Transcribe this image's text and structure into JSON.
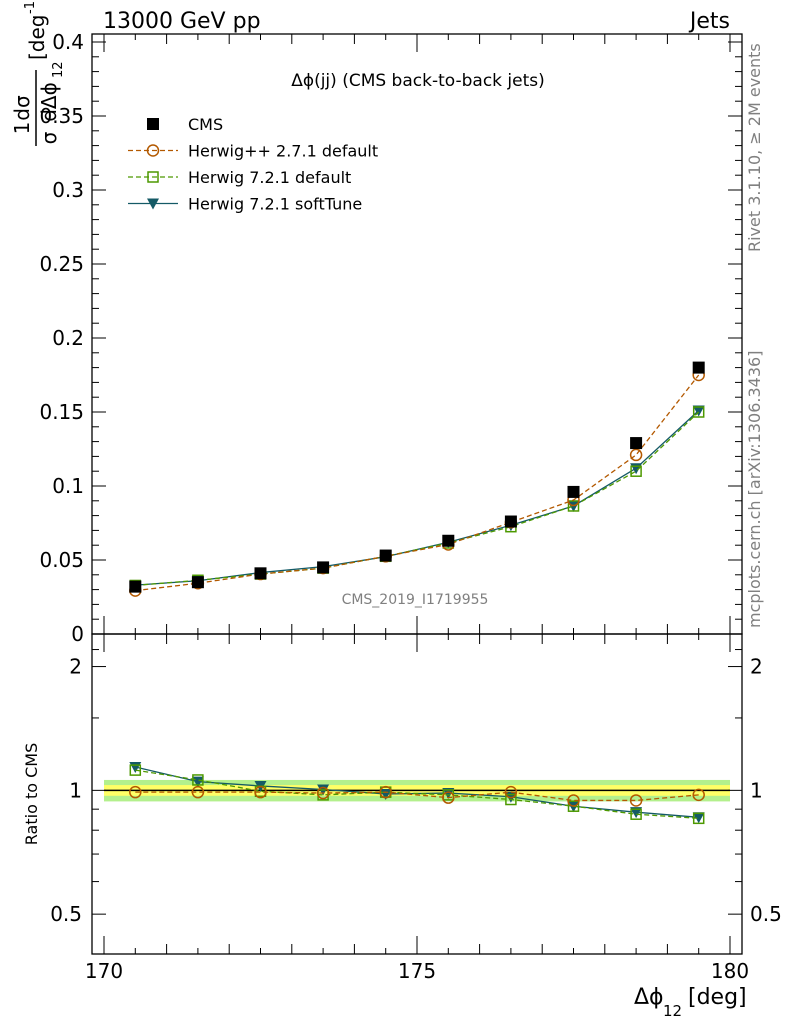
{
  "header": {
    "left": "13000 GeV pp",
    "right": "Jets"
  },
  "side_labels": {
    "rivet": "Rivet 3.1.10, ≥ 2M events",
    "mcplots": "mcplots.cern.ch [arXiv:1306.3436]"
  },
  "chart_data": [
    {
      "type": "line",
      "title": "Δϕ(jj) (CMS back-to-back jets)",
      "watermark": "CMS_2019_I1719955",
      "ylabel": {
        "num": "1",
        "num2": "dσ",
        "den": "σ",
        "den2": "dΔϕ",
        "den_sub": "12",
        "unit": "[deg",
        "unit_sup": "-1",
        "unit_close": "]"
      },
      "xlim": [
        170,
        180
      ],
      "ylim": [
        0,
        0.4
      ],
      "yticks": [
        "0",
        "0.05",
        "0.1",
        "0.15",
        "0.2",
        "0.25",
        "0.3",
        "0.35",
        "0.4"
      ],
      "x": [
        170.5,
        171.5,
        172.5,
        173.5,
        174.5,
        175.5,
        176.5,
        177.5,
        178.5,
        179.5
      ],
      "series": [
        {
          "name": "CMS",
          "color": "#000000",
          "marker": "square-filled",
          "line": "none",
          "values": [
            0.032,
            0.035,
            0.041,
            0.045,
            0.053,
            0.063,
            0.076,
            0.096,
            0.129,
            0.18
          ]
        },
        {
          "name": "Herwig++ 2.7.1 default",
          "color": "#b35900",
          "marker": "circle-open",
          "line": "dashed",
          "values": [
            0.0293,
            0.0343,
            0.0405,
            0.0445,
            0.0525,
            0.0605,
            0.0755,
            0.0905,
            0.121,
            0.175
          ]
        },
        {
          "name": "Herwig 7.2.1 default",
          "color": "#4d9900",
          "marker": "square-open",
          "line": "dashed",
          "values": [
            0.0328,
            0.0363,
            0.0405,
            0.0445,
            0.0525,
            0.0615,
            0.0725,
            0.0865,
            0.11,
            0.15
          ]
        },
        {
          "name": "Herwig 7.2.1 softTune",
          "color": "#145a66",
          "marker": "triangle-down",
          "line": "solid",
          "values": [
            0.033,
            0.036,
            0.0415,
            0.0455,
            0.0522,
            0.062,
            0.0735,
            0.0865,
            0.112,
            0.151
          ]
        }
      ]
    },
    {
      "type": "line",
      "ylabel": "Ratio to CMS",
      "xlabel": {
        "main": "Δϕ",
        "sub": "12",
        "unit": "[deg]"
      },
      "xlim": [
        170,
        180
      ],
      "ylim": [
        0.4,
        2.4
      ],
      "log_scale_y": true,
      "yticks": [
        "0.5",
        "1",
        "2"
      ],
      "xticks": [
        "170",
        "175",
        "180"
      ],
      "x": [
        170.5,
        171.5,
        172.5,
        173.5,
        174.5,
        175.5,
        176.5,
        177.5,
        178.5,
        179.5
      ],
      "uncertainty_band": {
        "inner": 0.03,
        "outer": 0.06,
        "inner_color": "#ffff66",
        "outer_color": "#b3f08c"
      },
      "series": [
        {
          "name": "Herwig++ 2.7.1 default",
          "color": "#b35900",
          "marker": "circle-open",
          "line": "dashed",
          "values": [
            0.99,
            0.99,
            0.99,
            0.985,
            0.99,
            0.96,
            0.99,
            0.945,
            0.945,
            0.975
          ]
        },
        {
          "name": "Herwig 7.2.1 default",
          "color": "#4d9900",
          "marker": "square-open",
          "line": "dashed",
          "values": [
            1.12,
            1.06,
            0.995,
            0.975,
            0.99,
            0.975,
            0.95,
            0.915,
            0.875,
            0.855
          ]
        },
        {
          "name": "Herwig 7.2.1 softTune",
          "color": "#145a66",
          "marker": "triangle-down",
          "line": "solid",
          "values": [
            1.14,
            1.05,
            1.025,
            1.005,
            0.98,
            0.985,
            0.965,
            0.915,
            0.885,
            0.86
          ]
        }
      ]
    }
  ]
}
